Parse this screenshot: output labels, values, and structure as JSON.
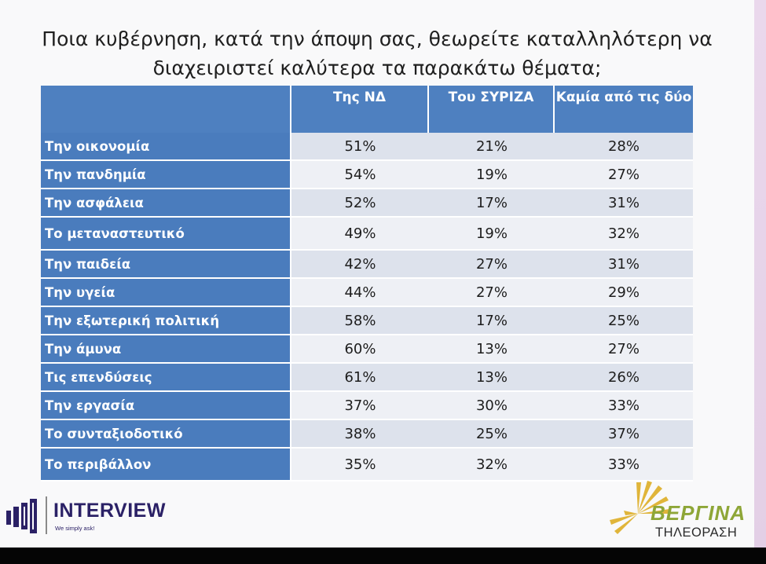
{
  "title": {
    "line1": "Ποια κυβέρνηση, κατά την άποψη σας, θεωρείτε καταλληλότερη να",
    "line2": "διαχειριστεί καλύτερα τα παρακάτω θέματα;"
  },
  "table": {
    "columns": [
      "Της ΝΔ",
      "Του ΣΥΡΙΖΑ",
      "Καμία από τις δύο"
    ],
    "rows": [
      {
        "label": "Την οικονομία",
        "values": [
          "51%",
          "21%",
          "28%"
        ]
      },
      {
        "label": "Την πανδημία",
        "values": [
          "54%",
          "19%",
          "27%"
        ]
      },
      {
        "label": "Την ασφάλεια",
        "values": [
          "52%",
          "17%",
          "31%"
        ]
      },
      {
        "label": "Το μεταναστευτικό",
        "values": [
          "49%",
          "19%",
          "32%"
        ]
      },
      {
        "label": "Την παιδεία",
        "values": [
          "42%",
          "27%",
          "31%"
        ]
      },
      {
        "label": "Την υγεία",
        "values": [
          "44%",
          "27%",
          "29%"
        ]
      },
      {
        "label": "Την εξωτερική πολιτική",
        "values": [
          "58%",
          "17%",
          "25%"
        ]
      },
      {
        "label": "Την άμυνα",
        "values": [
          "60%",
          "13%",
          "27%"
        ]
      },
      {
        "label": "Τις επενδύσεις",
        "values": [
          "61%",
          "13%",
          "26%"
        ]
      },
      {
        "label": "Την εργασία",
        "values": [
          "37%",
          "30%",
          "33%"
        ]
      },
      {
        "label": "Το συνταξιοδοτικό",
        "values": [
          "38%",
          "25%",
          "37%"
        ]
      },
      {
        "label": "Το περιβάλλον",
        "values": [
          "35%",
          "32%",
          "33%"
        ]
      }
    ]
  },
  "logos": {
    "interview": {
      "name": "INTERVIEW",
      "tagline": "We simply ask!",
      "icon": "bar-building-icon"
    },
    "vergina": {
      "name": "ΒΕΡΓΙΝΑ",
      "subtitle": "ΤΗΛΕΟΡΑΣΗ",
      "icon": "sun-rays-icon"
    }
  },
  "colors": {
    "header_blue": "#4e80c0",
    "row_label_blue": "#4a7cbd",
    "row_odd": "#dde2ec",
    "row_even": "#eef0f5",
    "interview_purple": "#2b2166",
    "vergina_green": "#8ea637",
    "vergina_gold": "#e0b53a"
  }
}
